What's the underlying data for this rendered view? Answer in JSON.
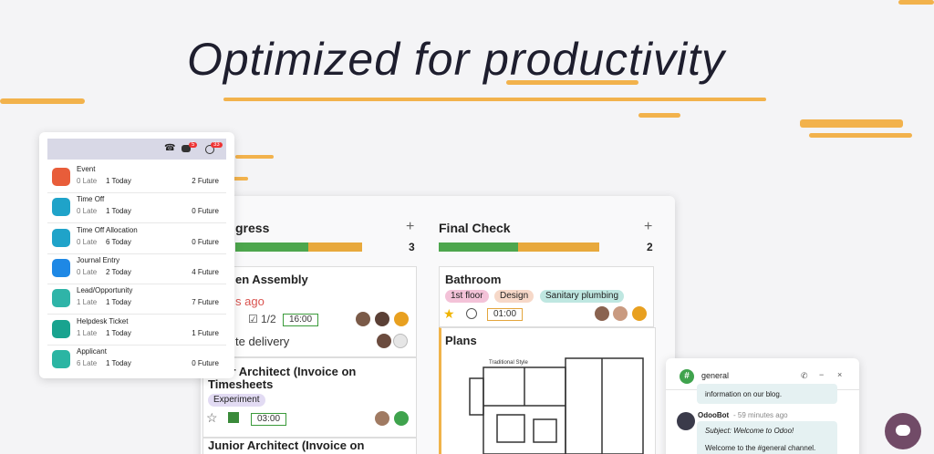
{
  "header": {
    "title": "Optimized for productivity"
  },
  "activity_panel": {
    "badges": [
      "5",
      "33"
    ],
    "rows": [
      {
        "name": "Event",
        "late": "0 Late",
        "today": "1 Today",
        "future": "2 Future"
      },
      {
        "name": "Time Off",
        "late": "0 Late",
        "today": "1 Today",
        "future": "0 Future"
      },
      {
        "name": "Time Off Allocation",
        "late": "0 Late",
        "today": "6 Today",
        "future": "0 Future"
      },
      {
        "name": "Journal Entry",
        "late": "0 Late",
        "today": "2 Today",
        "future": "4 Future"
      },
      {
        "name": "Lead/Opportunity",
        "late": "1 Late",
        "today": "1 Today",
        "future": "7 Future"
      },
      {
        "name": "Helpdesk Ticket",
        "late": "1 Late",
        "today": "1 Today",
        "future": "1 Future"
      },
      {
        "name": "Applicant",
        "late": "6 Late",
        "today": "1 Today",
        "future": "0 Future"
      }
    ]
  },
  "kanban": {
    "columns": [
      {
        "title": "gress",
        "count": "3",
        "cards": [
          {
            "title": "en Assembly",
            "deadline": "s ago",
            "checklist": "1/2",
            "time": "16:00",
            "note": "te delivery"
          },
          {
            "title": [
              "ior Architect (Invoice on",
              "Timesheets"
            ],
            "tag": "Experiment",
            "time": "03:00"
          },
          {
            "title": "Junior Architect (Invoice on"
          }
        ]
      },
      {
        "title": "Final Check",
        "count": "2",
        "cards": [
          {
            "title": "Bathroom",
            "tags": [
              "1st floor",
              "Design",
              "Sanitary plumbing"
            ],
            "time": "01:00"
          },
          {
            "title": "Plans",
            "image_caption": "Traditional Style"
          }
        ]
      }
    ]
  },
  "chat": {
    "channel": "general",
    "messages": [
      {
        "text": "information on our blog."
      },
      {
        "author": "OdooBot",
        "time": "- 59 minutes ago",
        "lines": [
          "Subject: Welcome to Odoo!",
          "Welcome to the #general channel."
        ]
      }
    ]
  }
}
